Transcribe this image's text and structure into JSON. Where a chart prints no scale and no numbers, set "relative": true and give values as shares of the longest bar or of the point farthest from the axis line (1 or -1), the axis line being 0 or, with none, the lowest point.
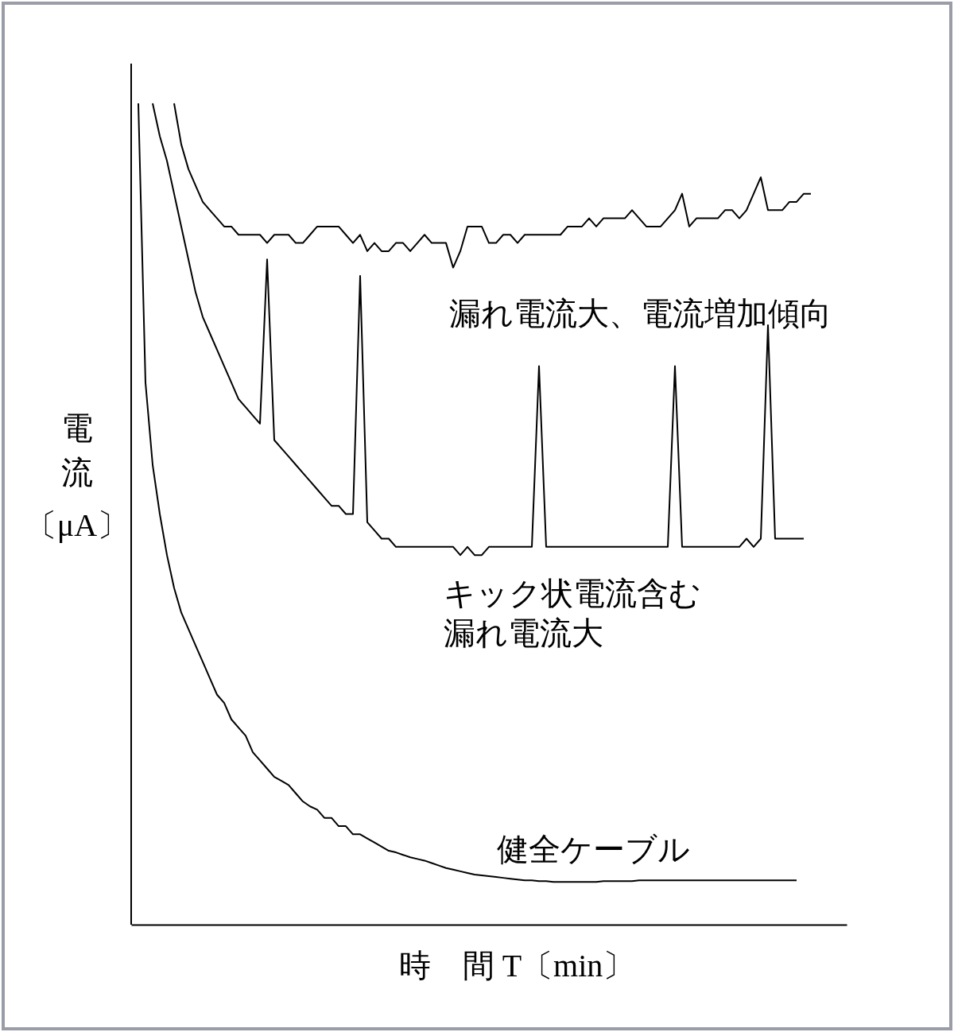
{
  "chart_data": {
    "type": "line",
    "relative": true,
    "xlabel": "時　間 T〔min〕",
    "ylabel": "電流〔μA〕",
    "categories": [
      null,
      null,
      null,
      null,
      null,
      null,
      null,
      null,
      null,
      null,
      null,
      null,
      null,
      null,
      null,
      null,
      null,
      null,
      null,
      null,
      null,
      null,
      null,
      null,
      null,
      null,
      null,
      null,
      null,
      null,
      null,
      null,
      null,
      null,
      null,
      null,
      null,
      null,
      null,
      null,
      null,
      null,
      null,
      null,
      null,
      null,
      null,
      null,
      null,
      null,
      null,
      null,
      null,
      null,
      null,
      null,
      null,
      null,
      null,
      null,
      null,
      null,
      null,
      null,
      null,
      null,
      null,
      null,
      null,
      null,
      null,
      null,
      null,
      null,
      null,
      null,
      null,
      null,
      null,
      null,
      null,
      null,
      null,
      null,
      null,
      null,
      null,
      null,
      null,
      null,
      null,
      null,
      null,
      null,
      null,
      null,
      null,
      null,
      null,
      null,
      null
    ],
    "series": [
      {
        "name": "漏れ電流大、電流増加傾向",
        "color": "#000000",
        "values": [
          null,
          null,
          null,
          null,
          null,
          null,
          1.0,
          0.95,
          0.92,
          0.9,
          0.88,
          0.87,
          0.86,
          0.85,
          0.85,
          0.84,
          0.84,
          0.84,
          0.84,
          0.83,
          0.84,
          0.84,
          0.84,
          0.83,
          0.83,
          0.84,
          0.85,
          0.85,
          0.85,
          0.85,
          0.84,
          0.83,
          0.84,
          0.82,
          0.83,
          0.82,
          0.82,
          0.83,
          0.83,
          0.82,
          0.83,
          0.84,
          0.83,
          0.83,
          0.83,
          0.8,
          0.82,
          0.85,
          0.85,
          0.85,
          0.83,
          0.83,
          0.84,
          0.84,
          0.83,
          0.84,
          0.84,
          0.84,
          0.84,
          0.84,
          0.84,
          0.85,
          0.85,
          0.85,
          0.86,
          0.85,
          0.86,
          0.86,
          0.86,
          0.86,
          0.87,
          0.86,
          0.85,
          0.85,
          0.85,
          0.86,
          0.87,
          0.89,
          0.85,
          0.86,
          0.86,
          0.86,
          0.86,
          0.87,
          0.87,
          0.86,
          0.87,
          0.89,
          0.91,
          0.87,
          0.87,
          0.87,
          0.88,
          0.88,
          0.89,
          0.89,
          null,
          null,
          null,
          null,
          null
        ]
      },
      {
        "name": "キック状電流含む漏れ電流大",
        "color": "#000000",
        "values": [
          null,
          null,
          null,
          1.0,
          0.96,
          0.93,
          0.89,
          0.85,
          0.81,
          0.77,
          0.74,
          0.72,
          0.7,
          0.68,
          0.66,
          0.64,
          0.63,
          0.62,
          0.61,
          0.81,
          0.59,
          0.58,
          0.57,
          0.56,
          0.55,
          0.54,
          0.53,
          0.52,
          0.51,
          0.51,
          0.5,
          0.5,
          0.79,
          0.49,
          0.48,
          0.47,
          0.47,
          0.46,
          0.46,
          0.46,
          0.46,
          0.46,
          0.46,
          0.46,
          0.46,
          0.46,
          0.45,
          0.46,
          0.45,
          0.45,
          0.46,
          0.46,
          0.46,
          0.46,
          0.46,
          0.46,
          0.46,
          0.68,
          0.46,
          0.46,
          0.46,
          0.46,
          0.46,
          0.46,
          0.46,
          0.46,
          0.46,
          0.46,
          0.46,
          0.46,
          0.46,
          0.46,
          0.46,
          0.46,
          0.46,
          0.46,
          0.68,
          0.46,
          0.46,
          0.46,
          0.46,
          0.46,
          0.46,
          0.46,
          0.46,
          0.46,
          0.47,
          0.46,
          0.47,
          0.73,
          0.47,
          0.47,
          0.47,
          0.47,
          0.47,
          null,
          null,
          null,
          null,
          null,
          null
        ]
      },
      {
        "name": "健全ケーブル",
        "color": "#000000",
        "values": [
          null,
          1.0,
          0.66,
          0.56,
          0.5,
          0.45,
          0.41,
          0.38,
          0.36,
          0.34,
          0.32,
          0.3,
          0.28,
          0.27,
          0.25,
          0.24,
          0.23,
          0.21,
          0.2,
          0.19,
          0.18,
          0.175,
          0.17,
          0.16,
          0.15,
          0.144,
          0.14,
          0.13,
          0.13,
          0.12,
          0.12,
          0.11,
          0.11,
          0.105,
          0.1,
          0.095,
          0.09,
          0.088,
          0.085,
          0.082,
          0.08,
          0.078,
          0.075,
          0.072,
          0.069,
          0.067,
          0.065,
          0.063,
          0.061,
          0.06,
          0.059,
          0.058,
          0.057,
          0.056,
          0.055,
          0.054,
          0.054,
          0.053,
          0.053,
          0.052,
          0.052,
          0.052,
          0.052,
          0.052,
          0.052,
          0.052,
          0.053,
          0.053,
          0.053,
          0.053,
          0.053,
          0.054,
          0.054,
          0.054,
          0.054,
          0.054,
          0.054,
          0.054,
          0.054,
          0.054,
          0.054,
          0.054,
          0.054,
          0.054,
          0.054,
          0.054,
          0.054,
          0.054,
          0.054,
          0.054,
          0.054,
          0.054,
          0.054,
          0.054,
          null,
          null,
          null,
          null,
          null,
          null,
          null
        ]
      }
    ]
  }
}
